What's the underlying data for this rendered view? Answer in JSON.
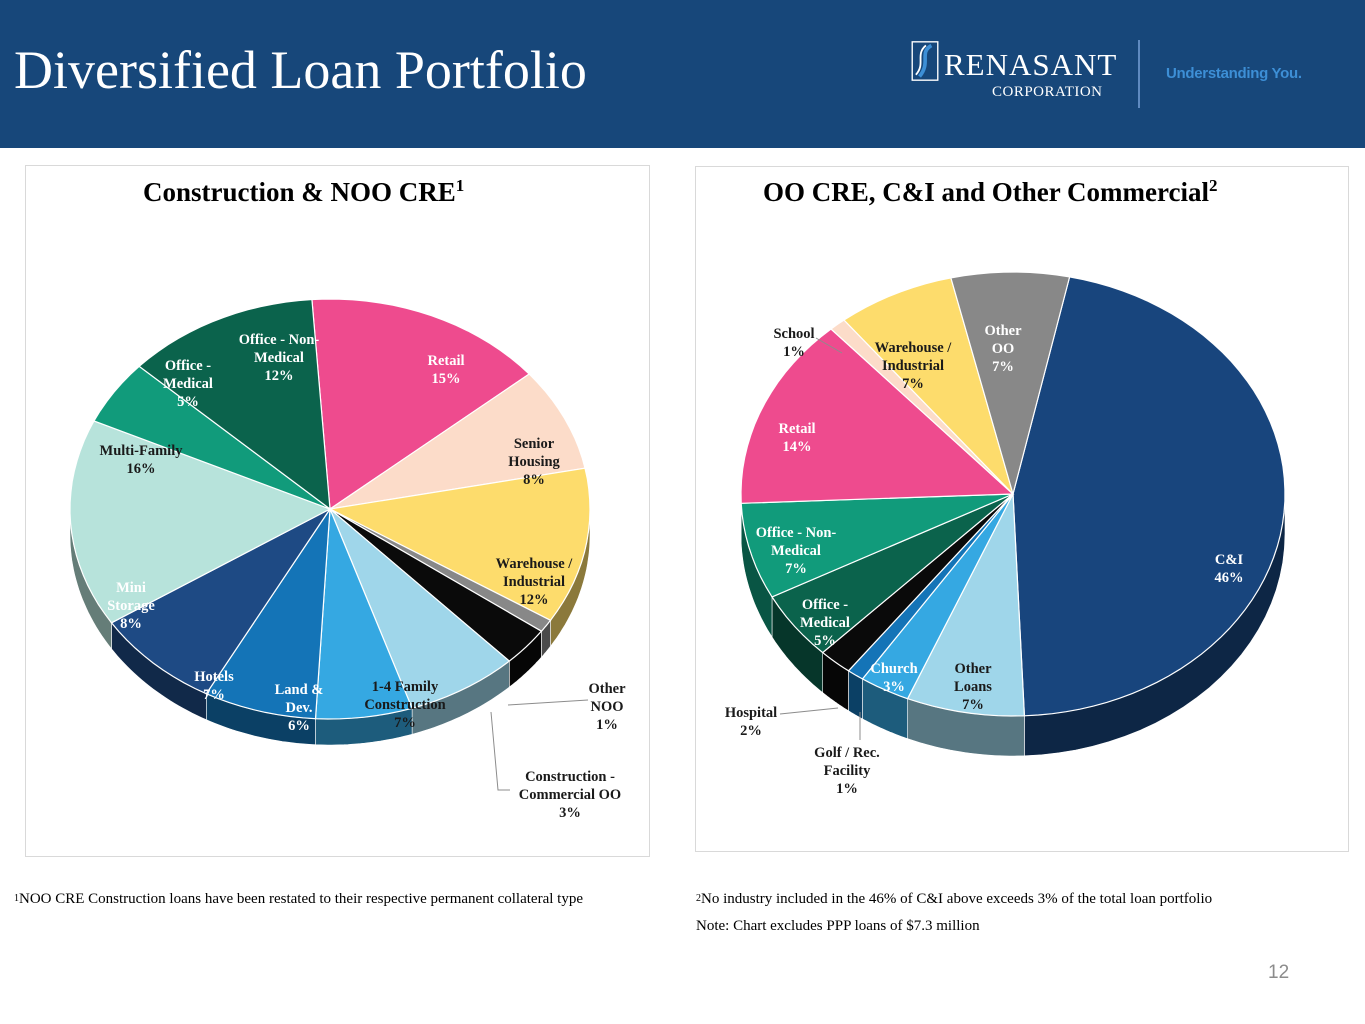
{
  "header": {
    "title": "Diversified Loan Portfolio",
    "logo_name": "RENASANT",
    "logo_sub": "CORPORATION",
    "tagline": "Understanding You.",
    "background": "#17477a"
  },
  "chart_data": [
    {
      "type": "pie",
      "title": "Construction & NOO CRE",
      "title_sup": "1",
      "slices": [
        {
          "label": "Retail",
          "value": 15,
          "display": "15%",
          "color": "#ee4b8e"
        },
        {
          "label": "Senior Housing",
          "value": 8,
          "display": "8%",
          "color": "#fcdcc9"
        },
        {
          "label": "Warehouse / Industrial",
          "value": 12,
          "display": "12%",
          "color": "#fddc6c"
        },
        {
          "label": "Other NOO",
          "value": 1,
          "display": "1%",
          "color": "#888888"
        },
        {
          "label": "Construction - Commercial OO",
          "value": 3,
          "display": "3%",
          "color": "#0a0a0a"
        },
        {
          "label": "1-4 Family Construction",
          "value": 7,
          "display": "7%",
          "color": "#9fd6ea"
        },
        {
          "label": "Land & Dev.",
          "value": 6,
          "display": "6%",
          "color": "#35a8e2"
        },
        {
          "label": "Hotels",
          "value": 7,
          "display": "7%",
          "color": "#1474b7"
        },
        {
          "label": "Mini Storage",
          "value": 8,
          "display": "8%",
          "color": "#1e4a84"
        },
        {
          "label": "Multi-Family",
          "value": 16,
          "display": "16%",
          "color": "#b7e3db"
        },
        {
          "label": "Office - Medical",
          "value": 5,
          "display": "5%",
          "color": "#119b7b"
        },
        {
          "label": "Office - Non-Medical",
          "value": 12,
          "display": "12%",
          "color": "#0b634c"
        }
      ]
    },
    {
      "type": "pie",
      "title": "OO CRE, C&I and Other Commercial",
      "title_sup": "2",
      "slices": [
        {
          "label": "C&I",
          "value": 46,
          "display": "46%",
          "color": "#18457d"
        },
        {
          "label": "Other Loans",
          "value": 7,
          "display": "7%",
          "color": "#9fd6ea"
        },
        {
          "label": "Church",
          "value": 3,
          "display": "3%",
          "color": "#35a8e2"
        },
        {
          "label": "Golf / Rec. Facility",
          "value": 1,
          "display": "1%",
          "color": "#1474b7"
        },
        {
          "label": "Hospital",
          "value": 2,
          "display": "2%",
          "color": "#0a0a0a"
        },
        {
          "label": "Office - Medical",
          "value": 5,
          "display": "5%",
          "color": "#0b634c"
        },
        {
          "label": "Office - Non-Medical",
          "value": 7,
          "display": "7%",
          "color": "#119b7b"
        },
        {
          "label": "Retail",
          "value": 14,
          "display": "14%",
          "color": "#ee4b8e"
        },
        {
          "label": "School",
          "value": 1,
          "display": "1%",
          "color": "#fcdcc9"
        },
        {
          "label": "Warehouse / Industrial",
          "value": 7,
          "display": "7%",
          "color": "#fddc6c"
        },
        {
          "label": "Other OO",
          "value": 7,
          "display": "7%",
          "color": "#888888"
        }
      ]
    }
  ],
  "footnotes": {
    "left_sup": "1",
    "left": "NOO CRE Construction loans have been restated to their respective permanent collateral type",
    "right_sup": "2",
    "right": "No industry included in the 46% of C&I above exceeds 3% of the total loan portfolio",
    "note": "Note: Chart excludes PPP loans of $7.3 million"
  },
  "page_number": "12"
}
